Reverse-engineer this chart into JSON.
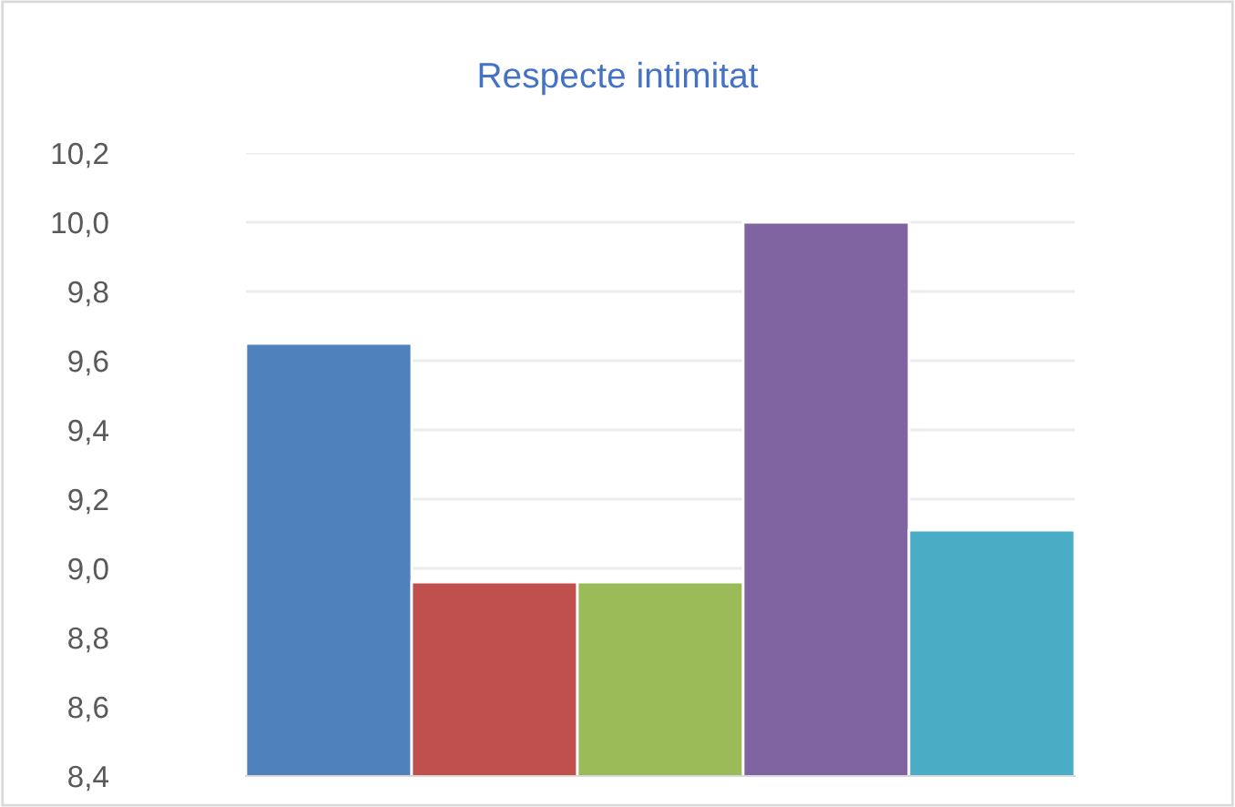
{
  "chart_data": {
    "type": "bar",
    "title": "Respecte intimitat",
    "categories": [
      null,
      null,
      null,
      null,
      null
    ],
    "values": [
      9.65,
      8.96,
      8.96,
      10.0,
      9.11
    ],
    "colors": [
      "#4f81bd",
      "#c0504d",
      "#9bbb59",
      "#8064a2",
      "#4bacc6"
    ],
    "ylim": [
      8.4,
      10.2
    ],
    "yticks": [
      {
        "value": 8.4,
        "label": "8,4"
      },
      {
        "value": 8.6,
        "label": "8,6"
      },
      {
        "value": 8.8,
        "label": "8,8"
      },
      {
        "value": 9.0,
        "label": "9,0"
      },
      {
        "value": 9.2,
        "label": "9,2"
      },
      {
        "value": 9.4,
        "label": "9,4"
      },
      {
        "value": 9.6,
        "label": "9,6"
      },
      {
        "value": 9.8,
        "label": "9,8"
      },
      {
        "value": 10.0,
        "label": "10,0"
      },
      {
        "value": 10.2,
        "label": "10,2"
      }
    ],
    "grid": "y",
    "tick_labels": "y"
  }
}
